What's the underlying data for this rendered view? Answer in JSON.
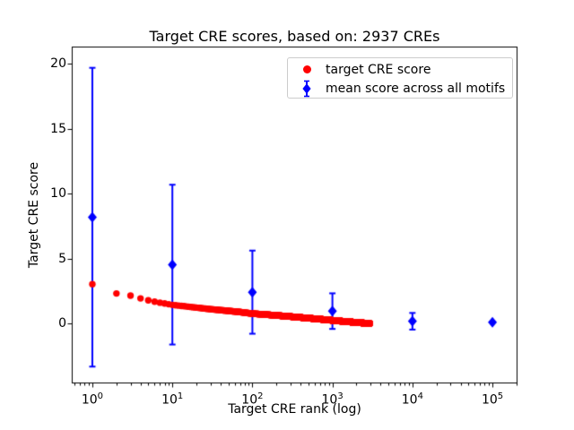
{
  "figure": {
    "title": "Target CRE scores, based on: 2937 CREs",
    "xlabel": "Target CRE rank (log)",
    "ylabel": "Target CRE score"
  },
  "legend": {
    "items": [
      {
        "label": "target CRE score",
        "marker": "circle",
        "color": "#ff0000"
      },
      {
        "label": "mean score across all motifs",
        "marker": "diamond-errorbar",
        "color": "#0000ff"
      }
    ]
  },
  "chart_data": {
    "type": "scatter",
    "title": "Target CRE scores, based on: 2937 CREs",
    "xlabel": "Target CRE rank (log)",
    "ylabel": "Target CRE score",
    "x_scale": "log",
    "xlim": [
      0.56,
      203000
    ],
    "ylim": [
      -4.56,
      21.3
    ],
    "x_tick_exponents": [
      0,
      1,
      2,
      3,
      4,
      5
    ],
    "y_ticks": [
      0,
      5,
      10,
      15,
      20
    ],
    "grid": false,
    "legend_position": "upper right",
    "series": [
      {
        "name": "target CRE score",
        "marker": "circle",
        "color": "#ff0000",
        "n_points": 2937,
        "anchors": [
          [
            1,
            3.05
          ],
          [
            2,
            2.33
          ],
          [
            3,
            2.16
          ],
          [
            4,
            1.95
          ],
          [
            5,
            1.8
          ],
          [
            6,
            1.7
          ],
          [
            7,
            1.62
          ],
          [
            8,
            1.56
          ],
          [
            10,
            1.45
          ],
          [
            15,
            1.33
          ],
          [
            20,
            1.24
          ],
          [
            30,
            1.12
          ],
          [
            50,
            0.99
          ],
          [
            70,
            0.9
          ],
          [
            100,
            0.78
          ],
          [
            150,
            0.7
          ],
          [
            200,
            0.64
          ],
          [
            300,
            0.55
          ],
          [
            500,
            0.43
          ],
          [
            700,
            0.35
          ],
          [
            1000,
            0.26
          ],
          [
            1500,
            0.16
          ],
          [
            2000,
            0.1
          ],
          [
            2500,
            0.05
          ],
          [
            2937,
            0.02
          ]
        ]
      },
      {
        "name": "mean score across all motifs",
        "marker": "diamond",
        "color": "#0000ff",
        "points": [
          {
            "x": 1,
            "y": 8.2,
            "yerr": 11.5
          },
          {
            "x": 10,
            "y": 4.55,
            "yerr": 6.15
          },
          {
            "x": 100,
            "y": 2.43,
            "yerr": 3.2
          },
          {
            "x": 1000,
            "y": 0.97,
            "yerr": 1.37
          },
          {
            "x": 10000,
            "y": 0.19,
            "yerr": 0.64
          },
          {
            "x": 100000,
            "y": 0.11,
            "yerr": 0
          }
        ]
      }
    ]
  }
}
